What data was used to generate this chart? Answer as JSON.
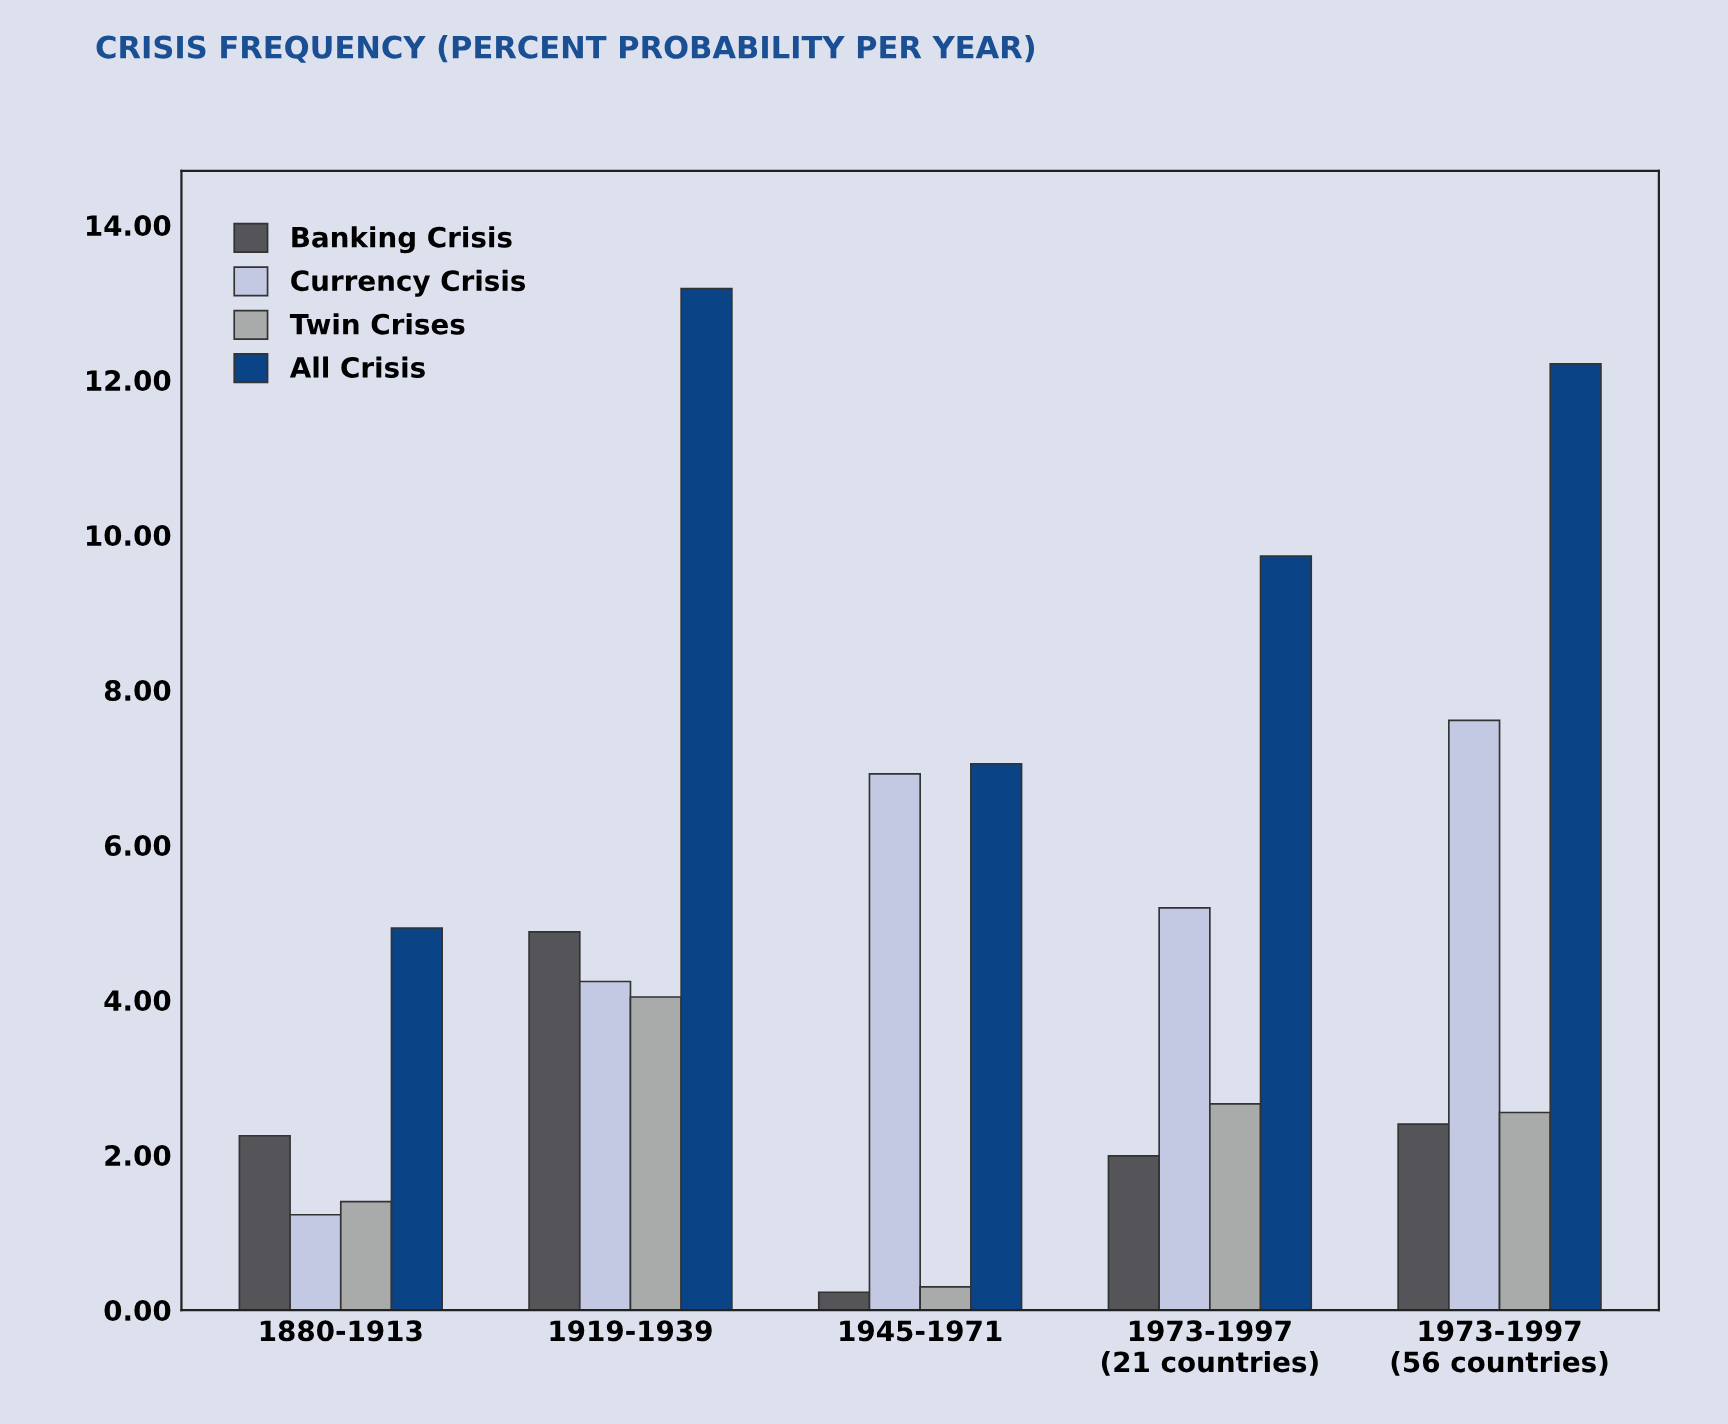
{
  "chart_data": {
    "type": "bar",
    "title": "CRISIS FREQUENCY (PERCENT PROBABILITY PER YEAR)",
    "categories": [
      "1880-1913",
      "1919-1939",
      "1945-1971",
      "1973-1997\n(21 countries)",
      "1973-1997\n(56 countries)"
    ],
    "series": [
      {
        "name": "Banking Crisis",
        "color": "#555559",
        "values": [
          2.25,
          4.88,
          0.23,
          1.99,
          2.4
        ]
      },
      {
        "name": "Currency Crisis",
        "color": "#c3c9e2",
        "values": [
          1.23,
          4.24,
          6.92,
          5.19,
          7.61
        ]
      },
      {
        "name": "Twin Crises",
        "color": "#a9abaa",
        "values": [
          1.4,
          4.04,
          0.3,
          2.66,
          2.55
        ]
      },
      {
        "name": "All Crisis",
        "color": "#0a4486",
        "values": [
          4.93,
          13.18,
          7.05,
          9.73,
          12.21
        ]
      }
    ],
    "ylim": [
      0,
      14.7
    ],
    "yticks": [
      {
        "value": 0,
        "label": "0.00"
      },
      {
        "value": 2,
        "label": "2.00"
      },
      {
        "value": 4,
        "label": "4.00"
      },
      {
        "value": 6,
        "label": "6.00"
      },
      {
        "value": 8,
        "label": "8.00"
      },
      {
        "value": 10,
        "label": "10.00"
      },
      {
        "value": 12,
        "label": "12.00"
      },
      {
        "value": 14,
        "label": "14.00"
      }
    ],
    "grid": false,
    "legend": "top left"
  }
}
